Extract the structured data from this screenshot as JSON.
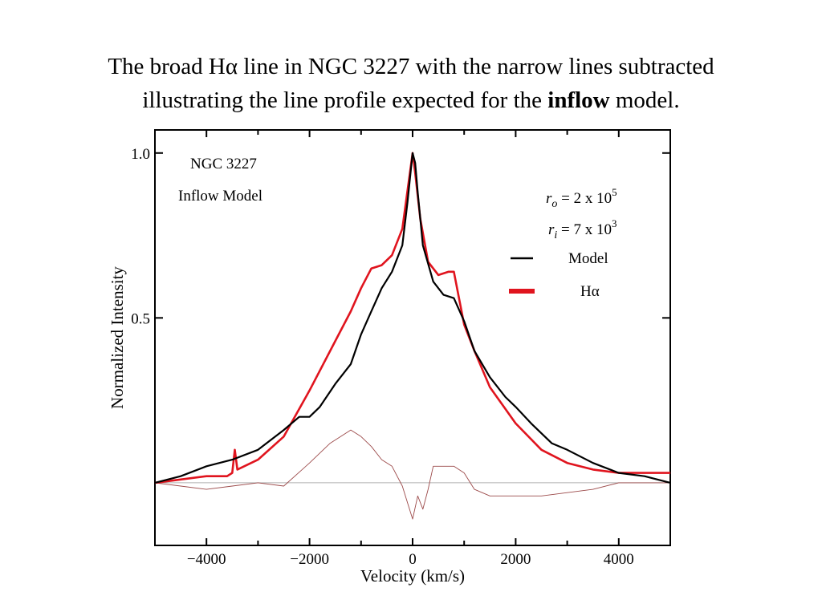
{
  "slide": {
    "title_line1_a": "The broad H",
    "title_line1_alpha": "α",
    "title_line1_b": " line in NGC 3227 with the narrow lines subtracted",
    "title_line2_a": "illustrating the line profile expected for the ",
    "title_line2_bold": "inflow",
    "title_line2_b": " model."
  },
  "chart_data": {
    "type": "line",
    "xlabel": "Velocity (km/s)",
    "ylabel": "Normalized Intensity",
    "xlim": [
      -5000,
      5000
    ],
    "ylim": [
      -0.19,
      1.07
    ],
    "x_ticks": [
      -4000,
      -2000,
      0,
      2000,
      4000
    ],
    "x_tick_labels": [
      "−4000",
      "−2000",
      "0",
      "2000",
      "4000"
    ],
    "y_ticks": [
      0.5,
      1.0
    ],
    "y_tick_labels": [
      "0.5",
      "1.0"
    ],
    "grid": false,
    "annotations": {
      "object": "NGC 3227",
      "model": "Inflow Model",
      "ro_sym": "r",
      "ro_sub": "o",
      "ro_text": " = 2 x 10",
      "ro_exp": "5",
      "ri_sym": "r",
      "ri_sub": "i",
      "ri_text": " = 7 x 10",
      "ri_exp": "3"
    },
    "legend": {
      "placement": "right",
      "entries": [
        {
          "label": "Model",
          "color": "#000000"
        },
        {
          "label": "Hα",
          "color": "#e0141e"
        }
      ]
    },
    "zero_line": {
      "y": 0.0,
      "color": "#b0b0b0"
    },
    "series": [
      {
        "name": "Model",
        "color": "#000000",
        "x": [
          -5000,
          -4500,
          -4000,
          -3500,
          -3000,
          -2500,
          -2200,
          -2000,
          -1800,
          -1500,
          -1200,
          -1000,
          -800,
          -600,
          -400,
          -200,
          -100,
          0,
          50,
          100,
          200,
          400,
          600,
          800,
          1000,
          1200,
          1500,
          1800,
          2000,
          2300,
          2700,
          3000,
          3500,
          4000,
          4500,
          5000
        ],
        "y": [
          0.0,
          0.02,
          0.05,
          0.07,
          0.1,
          0.16,
          0.2,
          0.2,
          0.23,
          0.3,
          0.36,
          0.45,
          0.52,
          0.59,
          0.64,
          0.72,
          0.85,
          1.0,
          0.97,
          0.88,
          0.72,
          0.61,
          0.57,
          0.56,
          0.49,
          0.4,
          0.32,
          0.26,
          0.23,
          0.18,
          0.12,
          0.1,
          0.06,
          0.03,
          0.02,
          0.0
        ]
      },
      {
        "name": "Hα",
        "color": "#e0141e",
        "x": [
          -5000,
          -4500,
          -4000,
          -3600,
          -3500,
          -3450,
          -3400,
          -3000,
          -2500,
          -2000,
          -1500,
          -1200,
          -1000,
          -800,
          -600,
          -400,
          -200,
          0,
          50,
          150,
          300,
          500,
          700,
          800,
          900,
          1000,
          1200,
          1500,
          2000,
          2500,
          3000,
          3500,
          4000,
          4500,
          5000
        ],
        "y": [
          0.0,
          0.01,
          0.02,
          0.02,
          0.03,
          0.1,
          0.04,
          0.07,
          0.14,
          0.28,
          0.43,
          0.52,
          0.59,
          0.65,
          0.66,
          0.69,
          0.77,
          1.0,
          0.94,
          0.8,
          0.67,
          0.63,
          0.64,
          0.64,
          0.56,
          0.48,
          0.4,
          0.29,
          0.18,
          0.1,
          0.06,
          0.04,
          0.03,
          0.03,
          0.03
        ]
      },
      {
        "name": "Residual",
        "color": "#9c4a4a",
        "x": [
          -5000,
          -4500,
          -4000,
          -3500,
          -3000,
          -2500,
          -2000,
          -1600,
          -1200,
          -1000,
          -800,
          -600,
          -400,
          -200,
          -100,
          0,
          100,
          200,
          300,
          400,
          600,
          800,
          1000,
          1200,
          1500,
          2000,
          2500,
          3000,
          3500,
          4000,
          4500,
          5000
        ],
        "y": [
          0.0,
          -0.01,
          -0.02,
          -0.01,
          0.0,
          -0.01,
          0.06,
          0.12,
          0.16,
          0.14,
          0.11,
          0.07,
          0.05,
          -0.01,
          -0.06,
          -0.11,
          -0.04,
          -0.08,
          -0.02,
          0.05,
          0.05,
          0.05,
          0.03,
          -0.02,
          -0.04,
          -0.04,
          -0.04,
          -0.03,
          -0.02,
          0.0,
          0.0,
          0.0
        ]
      }
    ]
  }
}
